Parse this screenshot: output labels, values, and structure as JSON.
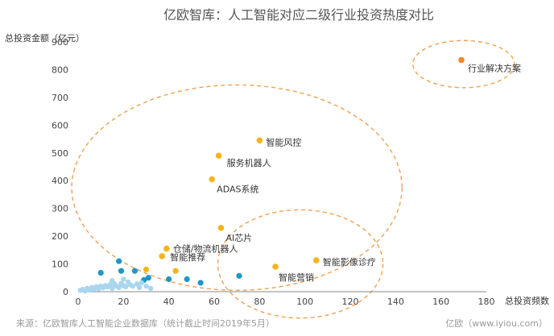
{
  "chart_data": {
    "type": "scatter",
    "title": "亿欧智库：人工智能对应二级行业投资热度对比",
    "ylabel": "总投资金额（亿元）",
    "xlabel": "总投资频数",
    "xlim": [
      0,
      180
    ],
    "ylim": [
      0,
      900
    ],
    "xticks": [
      0,
      20,
      40,
      60,
      80,
      100,
      120,
      140,
      160,
      180
    ],
    "yticks": [
      0,
      100,
      200,
      300,
      400,
      500,
      600,
      700,
      800,
      900
    ],
    "colors": {
      "highlight": "#F5B41E",
      "top": "#F08A2B",
      "other": "#1E96C8",
      "other_light": "#A9D6EE",
      "circle": "#F0A050"
    },
    "labeled_points": [
      {
        "label": "行业解决方案",
        "x": 169,
        "y": 835,
        "group": "top"
      },
      {
        "label": "智能风控",
        "x": 80,
        "y": 545,
        "group": "highlight"
      },
      {
        "label": "服务机器人",
        "x": 62,
        "y": 490,
        "group": "highlight"
      },
      {
        "label": "ADAS系统",
        "x": 59,
        "y": 405,
        "group": "highlight"
      },
      {
        "label": "AI芯片",
        "x": 63,
        "y": 230,
        "group": "highlight"
      },
      {
        "label": "仓储/物流机器人",
        "x": 39,
        "y": 155,
        "group": "highlight"
      },
      {
        "label": "智能推荐",
        "x": 37,
        "y": 128,
        "group": "highlight"
      },
      {
        "label": "智能影像诊疗",
        "x": 105,
        "y": 113,
        "group": "highlight"
      },
      {
        "label": "智能营销",
        "x": 87,
        "y": 90,
        "group": "highlight"
      }
    ],
    "unlabeled_points": [
      {
        "x": 30,
        "y": 80,
        "group": "highlight"
      },
      {
        "x": 43,
        "y": 75,
        "group": "highlight"
      },
      {
        "x": 10,
        "y": 68,
        "group": "other"
      },
      {
        "x": 18,
        "y": 110,
        "group": "other"
      },
      {
        "x": 19,
        "y": 75,
        "group": "other"
      },
      {
        "x": 25,
        "y": 75,
        "group": "other"
      },
      {
        "x": 31,
        "y": 50,
        "group": "other"
      },
      {
        "x": 29,
        "y": 42,
        "group": "other"
      },
      {
        "x": 40,
        "y": 45,
        "group": "other"
      },
      {
        "x": 48,
        "y": 45,
        "group": "other"
      },
      {
        "x": 54,
        "y": 32,
        "group": "other"
      },
      {
        "x": 71,
        "y": 57,
        "group": "other"
      },
      {
        "x": 1,
        "y": 5,
        "group": "other_light"
      },
      {
        "x": 2,
        "y": 8,
        "group": "other_light"
      },
      {
        "x": 3,
        "y": 3,
        "group": "other_light"
      },
      {
        "x": 4,
        "y": 12,
        "group": "other_light"
      },
      {
        "x": 5,
        "y": 6,
        "group": "other_light"
      },
      {
        "x": 6,
        "y": 15,
        "group": "other_light"
      },
      {
        "x": 7,
        "y": 9,
        "group": "other_light"
      },
      {
        "x": 8,
        "y": 18,
        "group": "other_light"
      },
      {
        "x": 9,
        "y": 11,
        "group": "other_light"
      },
      {
        "x": 10,
        "y": 20,
        "group": "other_light"
      },
      {
        "x": 11,
        "y": 14,
        "group": "other_light"
      },
      {
        "x": 12,
        "y": 22,
        "group": "other_light"
      },
      {
        "x": 13,
        "y": 17,
        "group": "other_light"
      },
      {
        "x": 14,
        "y": 25,
        "group": "other_light"
      },
      {
        "x": 15,
        "y": 12,
        "group": "other_light"
      },
      {
        "x": 16,
        "y": 28,
        "group": "other_light"
      },
      {
        "x": 17,
        "y": 20,
        "group": "other_light"
      },
      {
        "x": 18,
        "y": 15,
        "group": "other_light"
      },
      {
        "x": 19,
        "y": 30,
        "group": "other_light"
      },
      {
        "x": 20,
        "y": 22,
        "group": "other_light"
      },
      {
        "x": 21,
        "y": 18,
        "group": "other_light"
      },
      {
        "x": 22,
        "y": 35,
        "group": "other_light"
      },
      {
        "x": 23,
        "y": 25,
        "group": "other_light"
      },
      {
        "x": 24,
        "y": 20,
        "group": "other_light"
      },
      {
        "x": 26,
        "y": 28,
        "group": "other_light"
      },
      {
        "x": 27,
        "y": 15,
        "group": "other_light"
      },
      {
        "x": 28,
        "y": 32,
        "group": "other_light"
      },
      {
        "x": 30,
        "y": 20,
        "group": "other_light"
      },
      {
        "x": 32,
        "y": 12,
        "group": "other_light"
      },
      {
        "x": 15,
        "y": 40,
        "group": "other_light"
      },
      {
        "x": 20,
        "y": 45,
        "group": "other_light"
      }
    ],
    "highlight_circles": [
      {
        "cx": 170,
        "cy": 820,
        "rx": 8,
        "ry": 85
      },
      {
        "cx": 70,
        "cy": 375,
        "rx": 26,
        "ry": 370
      },
      {
        "cx": 98,
        "cy": 100,
        "rx": 13,
        "ry": 195
      }
    ],
    "source": "来源：亿欧智库人工智能企业数据库（统计截止时间2019年5月）",
    "credit": "亿欧（www.iyiou.com）"
  }
}
